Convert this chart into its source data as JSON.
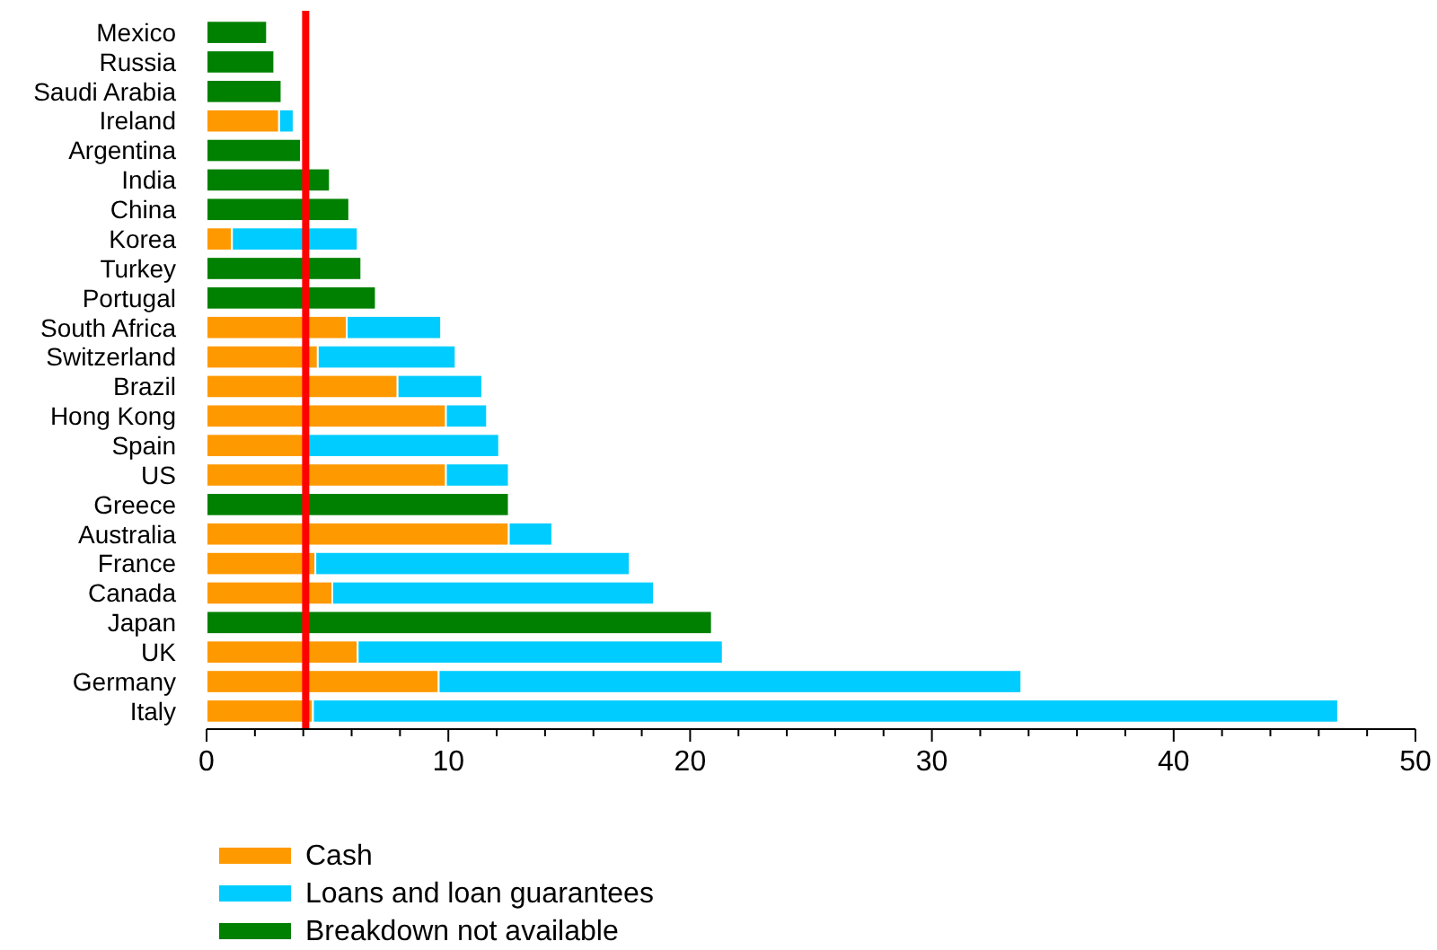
{
  "chart_data": {
    "type": "bar",
    "orientation": "horizontal",
    "stacked": true,
    "categories": [
      "Mexico",
      "Russia",
      "Saudi Arabia",
      "Ireland",
      "Argentina",
      "India",
      "China",
      "Korea",
      "Turkey",
      "Portugal",
      "South Africa",
      "Switzerland",
      "Brazil",
      "Hong Kong",
      "Spain",
      "US",
      "Greece",
      "Australia",
      "France",
      "Canada",
      "Japan",
      "UK",
      "Germany",
      "Italy"
    ],
    "series": [
      {
        "name": "Cash",
        "color": "#ff9900",
        "values": [
          null,
          null,
          null,
          3.0,
          null,
          null,
          null,
          1.05,
          null,
          null,
          5.8,
          4.6,
          7.9,
          9.9,
          4.2,
          9.9,
          null,
          12.5,
          4.5,
          5.2,
          null,
          6.25,
          9.6,
          4.4
        ]
      },
      {
        "name": "Loans and loan guarantees",
        "color": "#00ccff",
        "values": [
          null,
          null,
          null,
          0.6,
          null,
          null,
          null,
          5.2,
          null,
          null,
          3.9,
          5.7,
          3.5,
          1.7,
          7.9,
          2.6,
          null,
          1.8,
          13.0,
          13.3,
          null,
          15.1,
          24.1,
          42.4
        ]
      },
      {
        "name": "Breakdown not available",
        "color": "#008000",
        "values": [
          2.5,
          2.8,
          3.1,
          null,
          3.9,
          5.1,
          5.9,
          null,
          6.4,
          7.0,
          null,
          null,
          null,
          null,
          null,
          null,
          12.5,
          null,
          null,
          null,
          20.9,
          null,
          null,
          null
        ]
      }
    ],
    "xlim": [
      0,
      50
    ],
    "xticks": [
      0,
      {
        "value": 2,
        "label": null
      },
      {
        "value": 4,
        "label": null
      },
      {
        "value": 6,
        "label": null
      },
      {
        "value": 8,
        "label": null
      },
      10,
      {
        "value": 12,
        "label": null
      },
      {
        "value": 14,
        "label": null
      },
      {
        "value": 16,
        "label": null
      },
      {
        "value": 18,
        "label": null
      },
      20,
      {
        "value": 22,
        "label": null
      },
      {
        "value": 24,
        "label": null
      },
      {
        "value": 26,
        "label": null
      },
      {
        "value": 28,
        "label": null
      },
      30,
      {
        "value": 32,
        "label": null
      },
      {
        "value": 34,
        "label": null
      },
      {
        "value": 36,
        "label": null
      },
      {
        "value": 38,
        "label": null
      },
      40,
      {
        "value": 42,
        "label": null
      },
      {
        "value": 44,
        "label": null
      },
      {
        "value": 46,
        "label": null
      },
      {
        "value": 48,
        "label": null
      },
      50
    ],
    "ref_lines": [
      {
        "axis": "x",
        "value": 4.1,
        "color": "#ff0000"
      }
    ],
    "grid": false,
    "legend": "bottom left"
  }
}
